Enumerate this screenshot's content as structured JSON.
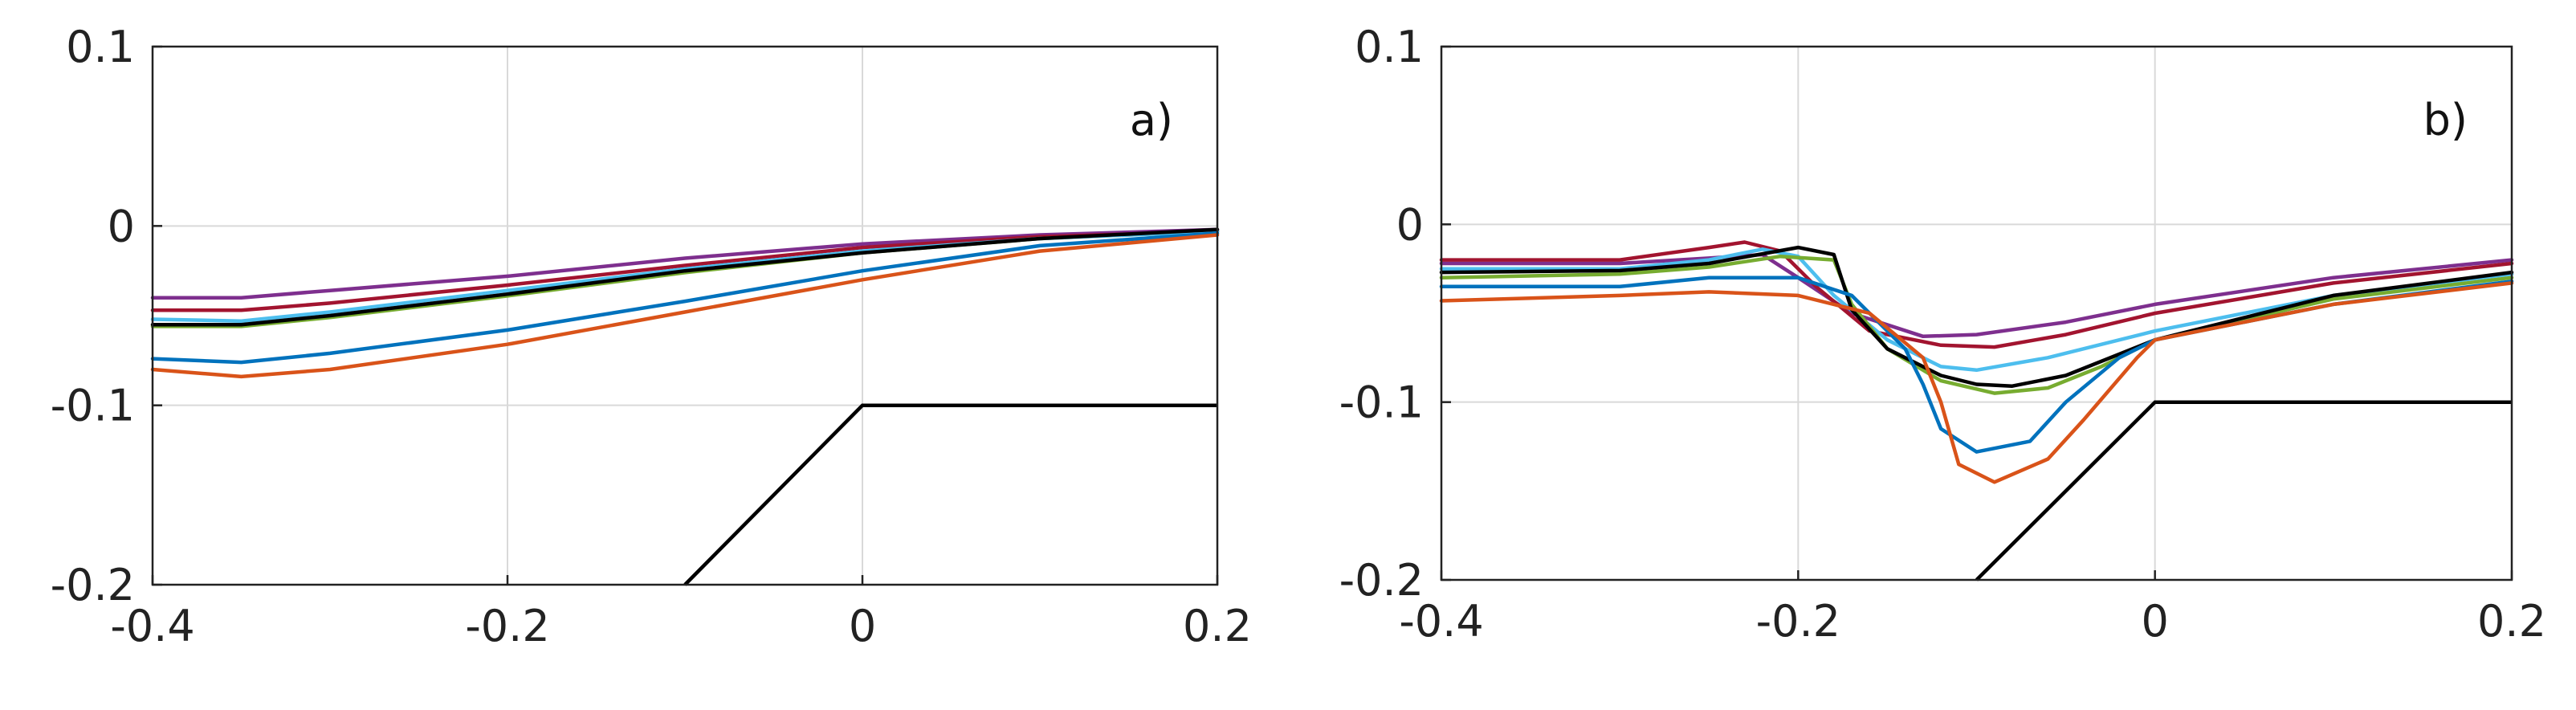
{
  "chart_data": [
    {
      "type": "line",
      "panel_label": "a)",
      "xlim": [
        -0.4,
        0.2
      ],
      "ylim": [
        -0.2,
        0.1
      ],
      "xticks": [
        -0.4,
        -0.2,
        0,
        0.2
      ],
      "xtick_labels": [
        "-0.4",
        "-0.2",
        "0",
        "0.2"
      ],
      "yticks": [
        -0.2,
        -0.1,
        0,
        0.1
      ],
      "ytick_labels": [
        "-0.2",
        "-0.1",
        "0",
        "0.1"
      ],
      "grid": true,
      "series": [
        {
          "color": "#7E2F8E",
          "x": [
            -0.4,
            -0.35,
            -0.3,
            -0.2,
            -0.1,
            0,
            0.1,
            0.2
          ],
          "y": [
            -0.04,
            -0.04,
            -0.036,
            -0.028,
            -0.018,
            -0.01,
            -0.005,
            -0.002
          ]
        },
        {
          "color": "#A2142F",
          "x": [
            -0.4,
            -0.35,
            -0.3,
            -0.2,
            -0.1,
            0,
            0.1,
            0.2
          ],
          "y": [
            -0.047,
            -0.047,
            -0.043,
            -0.033,
            -0.022,
            -0.012,
            -0.006,
            -0.003
          ]
        },
        {
          "color": "#77AC30",
          "x": [
            -0.4,
            -0.35,
            -0.3,
            -0.2,
            -0.1,
            0,
            0.1,
            0.2
          ],
          "y": [
            -0.056,
            -0.056,
            -0.051,
            -0.039,
            -0.026,
            -0.015,
            -0.007,
            -0.003
          ]
        },
        {
          "color": "#4DBEEE",
          "x": [
            -0.4,
            -0.35,
            -0.3,
            -0.2,
            -0.1,
            0,
            0.1,
            0.2
          ],
          "y": [
            -0.052,
            -0.053,
            -0.048,
            -0.036,
            -0.024,
            -0.014,
            -0.007,
            -0.003
          ]
        },
        {
          "color": "#000000",
          "x": [
            -0.4,
            -0.35,
            -0.3,
            -0.2,
            -0.1,
            0,
            0.1,
            0.2
          ],
          "y": [
            -0.055,
            -0.055,
            -0.05,
            -0.038,
            -0.025,
            -0.015,
            -0.007,
            -0.002
          ]
        },
        {
          "color": "#0072BD",
          "x": [
            -0.4,
            -0.35,
            -0.3,
            -0.2,
            -0.1,
            0,
            0.1,
            0.2
          ],
          "y": [
            -0.074,
            -0.076,
            -0.071,
            -0.058,
            -0.042,
            -0.025,
            -0.011,
            -0.004
          ]
        },
        {
          "color": "#D95319",
          "x": [
            -0.4,
            -0.35,
            -0.3,
            -0.2,
            -0.1,
            0,
            0.1,
            0.2
          ],
          "y": [
            -0.08,
            -0.084,
            -0.08,
            -0.066,
            -0.048,
            -0.03,
            -0.014,
            -0.005
          ]
        }
      ],
      "profile": {
        "color": "#000000",
        "x": [
          -0.1,
          0,
          0.2
        ],
        "y": [
          -0.2,
          -0.1,
          -0.1
        ]
      }
    },
    {
      "type": "line",
      "panel_label": "b)",
      "xlim": [
        -0.4,
        0.2
      ],
      "ylim": [
        -0.2,
        0.1
      ],
      "xticks": [
        -0.4,
        -0.2,
        0,
        0.2
      ],
      "xtick_labels": [
        "-0.4",
        "-0.2",
        "0",
        "0.2"
      ],
      "yticks": [
        -0.2,
        -0.1,
        0,
        0.1
      ],
      "ytick_labels": [
        "-0.2",
        "-0.1",
        "0",
        "0.1"
      ],
      "grid": true,
      "series": [
        {
          "color": "#7E2F8E",
          "x": [
            -0.4,
            -0.3,
            -0.25,
            -0.22,
            -0.2,
            -0.17,
            -0.13,
            -0.1,
            -0.05,
            0,
            0.1,
            0.2
          ],
          "y": [
            -0.022,
            -0.022,
            -0.019,
            -0.017,
            -0.03,
            -0.05,
            -0.063,
            -0.062,
            -0.055,
            -0.045,
            -0.03,
            -0.02
          ]
        },
        {
          "color": "#A2142F",
          "x": [
            -0.4,
            -0.3,
            -0.25,
            -0.23,
            -0.21,
            -0.19,
            -0.16,
            -0.12,
            -0.09,
            -0.05,
            0,
            0.1,
            0.2
          ],
          "y": [
            -0.02,
            -0.02,
            -0.013,
            -0.01,
            -0.015,
            -0.035,
            -0.06,
            -0.068,
            -0.069,
            -0.062,
            -0.05,
            -0.033,
            -0.022
          ]
        },
        {
          "color": "#4DBEEE",
          "x": [
            -0.4,
            -0.3,
            -0.25,
            -0.22,
            -0.2,
            -0.18,
            -0.15,
            -0.12,
            -0.1,
            -0.06,
            0,
            0.1,
            0.2
          ],
          "y": [
            -0.025,
            -0.025,
            -0.02,
            -0.014,
            -0.018,
            -0.04,
            -0.065,
            -0.08,
            -0.082,
            -0.075,
            -0.06,
            -0.04,
            -0.028
          ]
        },
        {
          "color": "#77AC30",
          "x": [
            -0.4,
            -0.3,
            -0.25,
            -0.21,
            -0.18,
            -0.17,
            -0.15,
            -0.12,
            -0.09,
            -0.06,
            -0.03,
            0,
            0.1,
            0.2
          ],
          "y": [
            -0.03,
            -0.028,
            -0.024,
            -0.018,
            -0.02,
            -0.045,
            -0.07,
            -0.088,
            -0.095,
            -0.092,
            -0.08,
            -0.065,
            -0.042,
            -0.03
          ]
        },
        {
          "color": "#000000",
          "x": [
            -0.4,
            -0.3,
            -0.25,
            -0.2,
            -0.18,
            -0.17,
            -0.15,
            -0.12,
            -0.1,
            -0.08,
            -0.05,
            0,
            0.1,
            0.2
          ],
          "y": [
            -0.027,
            -0.026,
            -0.022,
            -0.013,
            -0.017,
            -0.048,
            -0.07,
            -0.085,
            -0.09,
            -0.091,
            -0.085,
            -0.065,
            -0.04,
            -0.027
          ]
        },
        {
          "color": "#0072BD",
          "x": [
            -0.4,
            -0.3,
            -0.25,
            -0.2,
            -0.17,
            -0.14,
            -0.13,
            -0.12,
            -0.1,
            -0.07,
            -0.05,
            -0.02,
            0,
            0.1,
            0.2
          ],
          "y": [
            -0.035,
            -0.035,
            -0.03,
            -0.03,
            -0.04,
            -0.07,
            -0.09,
            -0.115,
            -0.128,
            -0.122,
            -0.1,
            -0.075,
            -0.065,
            -0.045,
            -0.032
          ]
        },
        {
          "color": "#D95319",
          "x": [
            -0.4,
            -0.3,
            -0.25,
            -0.2,
            -0.16,
            -0.13,
            -0.12,
            -0.11,
            -0.09,
            -0.06,
            -0.04,
            -0.01,
            0,
            0.1,
            0.2
          ],
          "y": [
            -0.043,
            -0.04,
            -0.038,
            -0.04,
            -0.05,
            -0.075,
            -0.1,
            -0.135,
            -0.145,
            -0.132,
            -0.11,
            -0.075,
            -0.065,
            -0.045,
            -0.033
          ]
        }
      ],
      "profile": {
        "color": "#000000",
        "x": [
          -0.1,
          0,
          0.2
        ],
        "y": [
          -0.2,
          -0.1,
          -0.1
        ]
      }
    }
  ]
}
